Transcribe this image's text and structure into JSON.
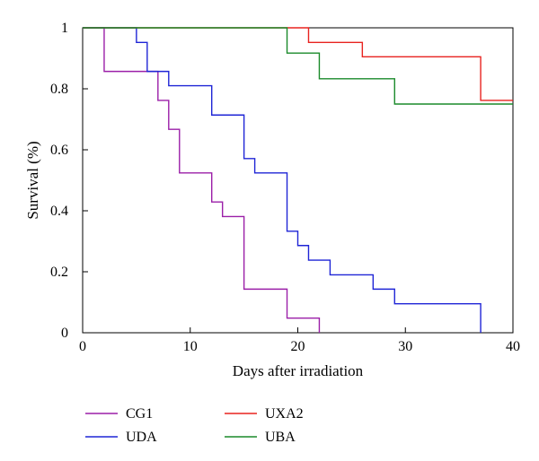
{
  "chart_data": {
    "type": "line",
    "step": true,
    "xlabel": "Days after irradiation",
    "ylabel": "Survival (%)",
    "xlim": [
      0,
      40
    ],
    "ylim": [
      0,
      1
    ],
    "xticks": [
      0,
      10,
      20,
      30,
      40
    ],
    "yticks": [
      0,
      0.2,
      0.4,
      0.6,
      0.8,
      1
    ],
    "ytick_labels": [
      "0",
      "0.2",
      "0.4",
      "0.6",
      "0.8",
      "1"
    ],
    "grid": false,
    "legend_position": "bottom",
    "series": [
      {
        "name": "CG1",
        "color": "#9b1fa8",
        "x": [
          0,
          2,
          7,
          8,
          9,
          12,
          13,
          15,
          19,
          22
        ],
        "y": [
          1,
          0.857,
          0.762,
          0.667,
          0.524,
          0.429,
          0.381,
          0.143,
          0.048,
          0
        ]
      },
      {
        "name": "UDA",
        "color": "#1f25d6",
        "x": [
          0,
          5,
          6,
          8,
          12,
          15,
          16,
          19,
          20,
          21,
          23,
          27,
          29,
          37
        ],
        "y": [
          1,
          0.952,
          0.857,
          0.81,
          0.714,
          0.571,
          0.524,
          0.333,
          0.286,
          0.238,
          0.19,
          0.143,
          0.095,
          0
        ]
      },
      {
        "name": "UXA2",
        "color": "#e8231f",
        "x": [
          0,
          21,
          26,
          37,
          40
        ],
        "y": [
          1,
          0.952,
          0.905,
          0.762,
          0.762
        ]
      },
      {
        "name": "UBA",
        "color": "#1a8a2a",
        "x": [
          0,
          19,
          22,
          29,
          40
        ],
        "y": [
          1,
          0.917,
          0.833,
          0.75,
          0.75
        ]
      }
    ]
  }
}
